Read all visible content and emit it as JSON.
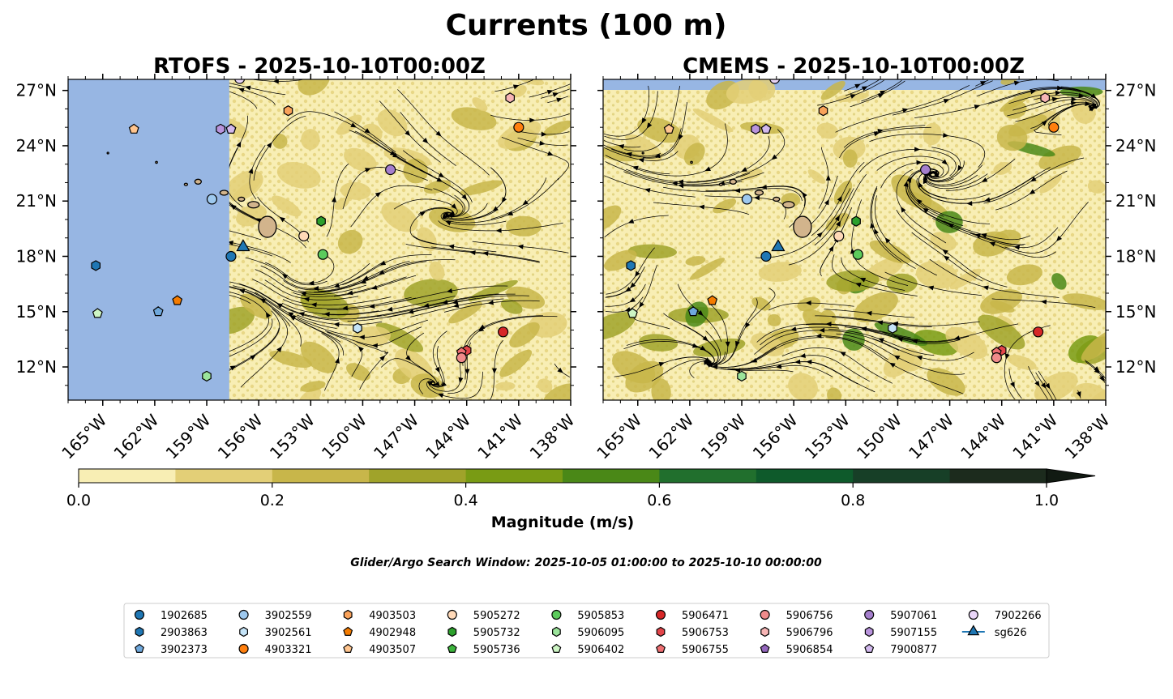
{
  "figure_title": "Currents (100 m)",
  "chart_data": {
    "type": "map",
    "panels": [
      {
        "title": "RTOFS - 2025-10-10T00:00Z",
        "land_mask_west_of_lon": -157.7
      },
      {
        "title": "CMEMS - 2025-10-10T00:00Z",
        "land_mask_west_of_lon": null
      }
    ],
    "x_ticks": [
      "165°W",
      "162°W",
      "159°W",
      "156°W",
      "153°W",
      "150°W",
      "147°W",
      "144°W",
      "141°W",
      "138°W"
    ],
    "x_tick_values": [
      -165,
      -162,
      -159,
      -156,
      -153,
      -150,
      -147,
      -144,
      -141,
      -138
    ],
    "y_ticks": [
      "27°N",
      "24°N",
      "21°N",
      "18°N",
      "15°N",
      "12°N"
    ],
    "y_tick_values": [
      27,
      24,
      21,
      18,
      15,
      12
    ],
    "lon_range": [
      -167,
      -138
    ],
    "lat_range": [
      10.2,
      27.6
    ],
    "colorbar": {
      "label": "Magnitude (m/s)",
      "ticks": [
        "0.0",
        "0.2",
        "0.4",
        "0.6",
        "0.8",
        "1.0"
      ],
      "tick_values": [
        0.0,
        0.2,
        0.4,
        0.6,
        0.8,
        1.0
      ],
      "levels": [
        0.0,
        0.1,
        0.2,
        0.3,
        0.4,
        0.5,
        0.6,
        0.7,
        0.8,
        0.9,
        1.0
      ],
      "colors": [
        "#f8eeb4",
        "#e3cf77",
        "#c8b64a",
        "#a0a32a",
        "#799b14",
        "#4a8817",
        "#216f2d",
        "#0e5a2b",
        "#173f27",
        "#1c2b1d"
      ],
      "extend": "max"
    },
    "search_window": "Glider/Argo Search Window: 2025-10-05 01:00:00 to 2025-10-10 00:00:00",
    "floats": [
      {
        "id": "1902685",
        "marker": "circle",
        "color": "#1f77b4",
        "lon": -157.6,
        "lat": 18.0
      },
      {
        "id": "2903863",
        "marker": "hexagon",
        "color": "#1f77b4",
        "lon": -165.4,
        "lat": 17.5
      },
      {
        "id": "3902373",
        "marker": "pentagon",
        "color": "#6fa8dc",
        "lon": -161.8,
        "lat": 15.0
      },
      {
        "id": "3902559",
        "marker": "circle",
        "color": "#9ec9ef",
        "lon": -158.7,
        "lat": 21.1
      },
      {
        "id": "3902561",
        "marker": "hexagon",
        "color": "#c5e4f8",
        "lon": -150.3,
        "lat": 14.1
      },
      {
        "id": "4903321",
        "marker": "circle",
        "color": "#ff7f0e",
        "lon": -141.0,
        "lat": 25.0
      },
      {
        "id": "4903503",
        "marker": "hexagon",
        "color": "#f9a25a",
        "lon": -154.3,
        "lat": 25.9
      },
      {
        "id": "4902948",
        "marker": "pentagon",
        "color": "#f57c00",
        "lon": -160.7,
        "lat": 15.6
      },
      {
        "id": "4903507",
        "marker": "pentagon",
        "color": "#ffc58f",
        "lon": -163.2,
        "lat": 24.9
      },
      {
        "id": "5905272",
        "marker": "circle",
        "color": "#ffd9b8",
        "lon": -153.4,
        "lat": 19.1
      },
      {
        "id": "5905732",
        "marker": "hexagon",
        "color": "#2ca02c",
        "lon": -152.4,
        "lat": 19.9
      },
      {
        "id": "5905736",
        "marker": "pentagon",
        "color": "#3cb43c",
        "lon": -152.3,
        "lat": 18.1
      },
      {
        "id": "5905853",
        "marker": "circle",
        "color": "#5ccb5c",
        "lon": -152.3,
        "lat": 18.1
      },
      {
        "id": "5906095",
        "marker": "hexagon",
        "color": "#9be49b",
        "lon": -159.0,
        "lat": 11.5
      },
      {
        "id": "5906402",
        "marker": "pentagon",
        "color": "#cdf5c4",
        "lon": -165.3,
        "lat": 14.9
      },
      {
        "id": "5906471",
        "marker": "circle",
        "color": "#d62728",
        "lon": -141.9,
        "lat": 13.9
      },
      {
        "id": "5906753",
        "marker": "hexagon",
        "color": "#e3454a",
        "lon": -144.0,
        "lat": 12.9
      },
      {
        "id": "5906755",
        "marker": "pentagon",
        "color": "#ef6f72",
        "lon": -144.3,
        "lat": 12.8
      },
      {
        "id": "5906756",
        "marker": "circle",
        "color": "#f08b8b",
        "lon": -144.3,
        "lat": 12.5
      },
      {
        "id": "5906796",
        "marker": "hexagon",
        "color": "#f7b5b5",
        "lon": -141.5,
        "lat": 26.6
      },
      {
        "id": "5906854",
        "marker": "pentagon",
        "color": "#9467bd",
        "lon": -157.6,
        "lat": 24.9
      },
      {
        "id": "5907061",
        "marker": "circle",
        "color": "#a57fcd",
        "lon": -148.4,
        "lat": 22.7
      },
      {
        "id": "5907155",
        "marker": "hexagon",
        "color": "#b994dd",
        "lon": -158.2,
        "lat": 24.9
      },
      {
        "id": "7900877",
        "marker": "pentagon",
        "color": "#d2b9ee",
        "lon": -157.6,
        "lat": 24.9
      },
      {
        "id": "7902266",
        "marker": "circle",
        "color": "#e9d5f8",
        "lon": -157.1,
        "lat": 27.8
      },
      {
        "id": "sg626",
        "marker": "triangle",
        "color": "#1f77b4",
        "lon": -156.9,
        "lat": 18.5
      }
    ]
  },
  "legend": {
    "entries": [
      "1902685",
      "2903863",
      "3902373",
      "3902559",
      "3902561",
      "4903321",
      "4903503",
      "4902948",
      "4903507",
      "5905272",
      "5905732",
      "5905736",
      "5905853",
      "5906095",
      "5906402",
      "5906471",
      "5906753",
      "5906755",
      "5906756",
      "5906796",
      "5906854",
      "5907061",
      "5907155",
      "7900877",
      "7902266",
      "sg626"
    ]
  },
  "style": {
    "land_color": "#d2b48c",
    "ocean_mask_color": "#97b6e3",
    "text_color": "#000000"
  }
}
